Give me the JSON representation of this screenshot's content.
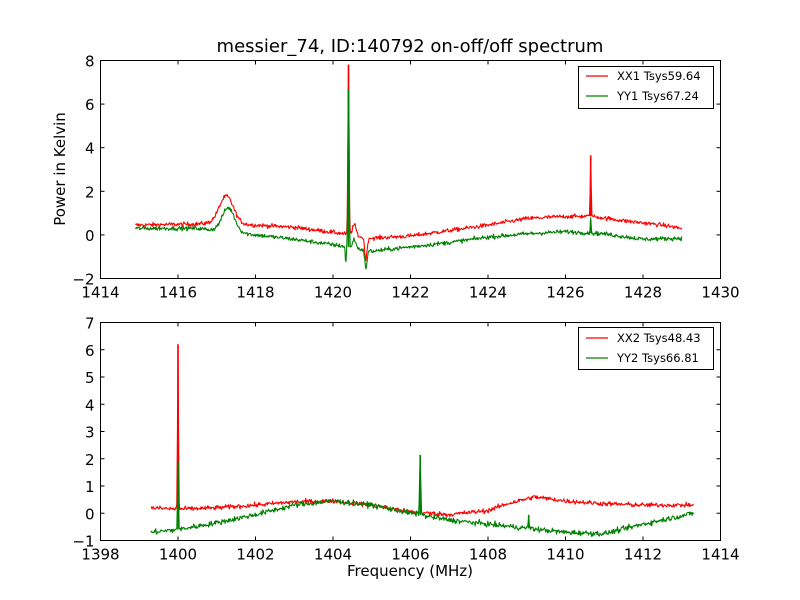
{
  "chart_data": [
    {
      "type": "line",
      "title": "messier_74, ID:140792 on-off/off spectrum",
      "xlabel": "",
      "ylabel": "Power in Kelvin",
      "xlim": [
        1414,
        1430
      ],
      "ylim": [
        -2,
        8
      ],
      "xticks": [
        1414,
        1416,
        1418,
        1420,
        1422,
        1424,
        1426,
        1428,
        1430
      ],
      "yticks": [
        -2,
        0,
        2,
        4,
        6,
        8
      ],
      "ytick_labels": [
        "−2",
        "0",
        "2",
        "4",
        "6",
        "8"
      ],
      "grid": false,
      "legend_position": "top-right",
      "series": [
        {
          "name": "XX1 Tsys59.64",
          "color": "#ff0000",
          "x_range": [
            1414.9,
            1429.0
          ],
          "baseline": [
            [
              1414.9,
              0.45
            ],
            [
              1416.5,
              0.5
            ],
            [
              1417.0,
              0.55
            ],
            [
              1418.0,
              0.45
            ],
            [
              1419.0,
              0.35
            ],
            [
              1420.3,
              0.05
            ],
            [
              1420.7,
              -0.1
            ],
            [
              1421.0,
              -0.15
            ],
            [
              1422.0,
              -0.05
            ],
            [
              1423.0,
              0.2
            ],
            [
              1424.0,
              0.45
            ],
            [
              1425.0,
              0.75
            ],
            [
              1426.0,
              0.85
            ],
            [
              1426.7,
              0.85
            ],
            [
              1427.5,
              0.65
            ],
            [
              1428.5,
              0.45
            ],
            [
              1429.0,
              0.3
            ]
          ],
          "features": [
            {
              "x": 1417.25,
              "amp": 1.25,
              "width": 0.18
            },
            {
              "x": 1420.4,
              "amp": 7.8,
              "width": 0.015
            },
            {
              "x": 1420.55,
              "amp": 0.5,
              "width": 0.05
            },
            {
              "x": 1420.85,
              "amp": -1.0,
              "width": 0.03
            },
            {
              "x": 1426.65,
              "amp": 2.8,
              "width": 0.012
            }
          ],
          "noise": 0.07
        },
        {
          "name": "YY1 Tsys67.24",
          "color": "#008000",
          "x_range": [
            1414.9,
            1429.0
          ],
          "baseline": [
            [
              1414.9,
              0.3
            ],
            [
              1416.5,
              0.3
            ],
            [
              1417.5,
              0.1
            ],
            [
              1418.0,
              0.0
            ],
            [
              1419.0,
              -0.2
            ],
            [
              1420.0,
              -0.45
            ],
            [
              1420.4,
              -0.55
            ],
            [
              1421.0,
              -0.75
            ],
            [
              1422.0,
              -0.55
            ],
            [
              1423.0,
              -0.35
            ],
            [
              1424.0,
              -0.1
            ],
            [
              1425.0,
              0.05
            ],
            [
              1426.0,
              0.15
            ],
            [
              1427.0,
              0.05
            ],
            [
              1428.0,
              -0.2
            ],
            [
              1429.0,
              -0.15
            ]
          ],
          "features": [
            {
              "x": 1417.3,
              "amp": 1.1,
              "width": 0.16
            },
            {
              "x": 1420.4,
              "amp": 7.2,
              "width": 0.015
            },
            {
              "x": 1420.33,
              "amp": -0.8,
              "width": 0.012
            },
            {
              "x": 1420.55,
              "amp": 0.4,
              "width": 0.04
            },
            {
              "x": 1420.85,
              "amp": -0.8,
              "width": 0.03
            },
            {
              "x": 1426.65,
              "amp": 0.6,
              "width": 0.012
            }
          ],
          "noise": 0.07
        }
      ]
    },
    {
      "type": "line",
      "title": "",
      "xlabel": "Frequency (MHz)",
      "ylabel": "",
      "xlim": [
        1398,
        1414
      ],
      "ylim": [
        -1,
        7
      ],
      "xticks": [
        1398,
        1400,
        1402,
        1404,
        1406,
        1408,
        1410,
        1412,
        1414
      ],
      "yticks": [
        -1,
        0,
        1,
        2,
        3,
        4,
        5,
        6,
        7
      ],
      "ytick_labels": [
        "−1",
        "0",
        "1",
        "2",
        "3",
        "4",
        "5",
        "6",
        "7"
      ],
      "grid": false,
      "legend_position": "top-right",
      "series": [
        {
          "name": "XX2 Tsys48.43",
          "color": "#ff0000",
          "x_range": [
            1399.3,
            1413.3
          ],
          "baseline": [
            [
              1399.3,
              0.2
            ],
            [
              1400.0,
              0.15
            ],
            [
              1401.0,
              0.2
            ],
            [
              1402.0,
              0.3
            ],
            [
              1403.0,
              0.42
            ],
            [
              1404.0,
              0.45
            ],
            [
              1405.0,
              0.3
            ],
            [
              1406.0,
              0.05
            ],
            [
              1407.0,
              -0.05
            ],
            [
              1408.0,
              0.1
            ],
            [
              1408.5,
              0.35
            ],
            [
              1409.2,
              0.6
            ],
            [
              1410.0,
              0.45
            ],
            [
              1411.0,
              0.35
            ],
            [
              1412.0,
              0.3
            ],
            [
              1413.3,
              0.3
            ]
          ],
          "features": [
            {
              "x": 1400.0,
              "amp": 6.05,
              "width": 0.012
            }
          ],
          "noise": 0.06
        },
        {
          "name": "YY2 Tsys66.81",
          "color": "#008000",
          "x_range": [
            1399.3,
            1413.3
          ],
          "baseline": [
            [
              1399.3,
              -0.7
            ],
            [
              1400.0,
              -0.6
            ],
            [
              1401.0,
              -0.35
            ],
            [
              1402.0,
              -0.05
            ],
            [
              1403.0,
              0.3
            ],
            [
              1404.0,
              0.45
            ],
            [
              1405.0,
              0.3
            ],
            [
              1406.0,
              0.0
            ],
            [
              1407.0,
              -0.25
            ],
            [
              1408.0,
              -0.4
            ],
            [
              1409.0,
              -0.55
            ],
            [
              1410.0,
              -0.7
            ],
            [
              1411.0,
              -0.75
            ],
            [
              1412.0,
              -0.4
            ],
            [
              1413.3,
              0.0
            ]
          ],
          "features": [
            {
              "x": 1400.0,
              "amp": 2.5,
              "width": 0.012
            },
            {
              "x": 1406.25,
              "amp": 2.2,
              "width": 0.015
            },
            {
              "x": 1409.05,
              "amp": 0.5,
              "width": 0.012
            }
          ],
          "noise": 0.07
        }
      ]
    }
  ]
}
